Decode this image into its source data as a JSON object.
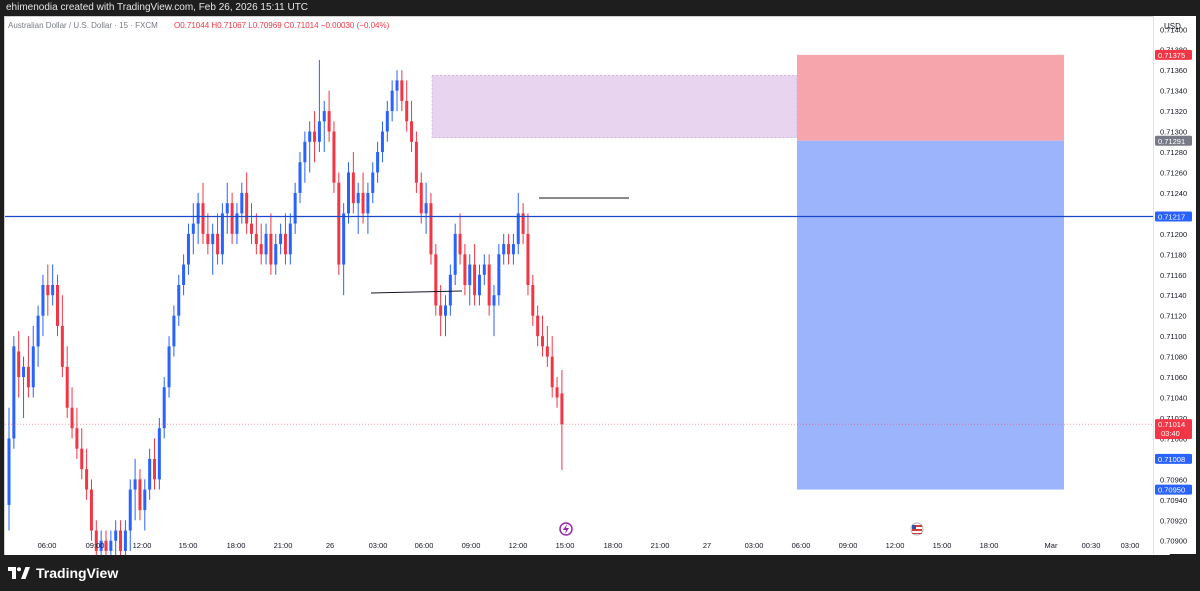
{
  "header": {
    "attribution": "ehimenodia created with TradingView.com, Feb 26, 2026 15:11 UTC"
  },
  "legend": {
    "symbol": "Australian Dollar / U.S. Dollar · 15 · FXCM",
    "ohlc": "O0.71044 H0.71067 L0.70969 C0.71014 −0.00030 (−0.04%)"
  },
  "price_axis": {
    "currency": "USD",
    "ticks": [
      "0.71400",
      "0.71380",
      "0.71360",
      "0.71340",
      "0.71320",
      "0.71300",
      "0.71280",
      "0.71260",
      "0.71240",
      "0.71220",
      "0.71200",
      "0.71180",
      "0.71160",
      "0.71140",
      "0.71120",
      "0.71100",
      "0.71080",
      "0.71060",
      "0.71040",
      "0.71020",
      "0.71000",
      "0.70980",
      "0.70960",
      "0.70940",
      "0.70920",
      "0.70900"
    ]
  },
  "time_axis": {
    "ticks": [
      "06:00",
      "09:00",
      "12:00",
      "15:00",
      "18:00",
      "21:00",
      "26",
      "03:00",
      "06:00",
      "09:00",
      "12:00",
      "15:00",
      "18:00",
      "21:00",
      "27",
      "03:00",
      "06:00",
      "09:00",
      "12:00",
      "15:00",
      "18:00",
      "Mar",
      "00:30",
      "03:00"
    ]
  },
  "price_labels": {
    "stop": "0.71375",
    "entry": "0.71291",
    "level": "0.71217",
    "current": "0.71014",
    "countdown": "03:40",
    "other": "0.71008",
    "target": "0.70950"
  },
  "colors": {
    "up": "#2962ff",
    "down": "#f23645",
    "stop_zone": "#f7a5ac",
    "target_zone": "#9cb4fc",
    "supply_zone": "#e9d4f0",
    "level_line": "#1848cc"
  },
  "chart_data": {
    "type": "candlestick",
    "symbol": "AUDUSD",
    "timeframe": "15",
    "ylim": [
      0.70888,
      0.71412
    ],
    "horizontal_level": 0.71217,
    "current_price": 0.71014,
    "supply_zone": {
      "top": 0.71355,
      "bottom": 0.71294
    },
    "position": {
      "stop": 0.71375,
      "entry": 0.71291,
      "target": 0.7095
    },
    "candles": [
      {
        "o": 0.70935,
        "h": 0.7103,
        "l": 0.7091,
        "c": 0.71
      },
      {
        "o": 0.71,
        "h": 0.711,
        "l": 0.7099,
        "c": 0.7109
      },
      {
        "o": 0.71085,
        "h": 0.71105,
        "l": 0.7104,
        "c": 0.7106
      },
      {
        "o": 0.7106,
        "h": 0.7108,
        "l": 0.7102,
        "c": 0.7107
      },
      {
        "o": 0.7107,
        "h": 0.711,
        "l": 0.7104,
        "c": 0.7105
      },
      {
        "o": 0.7105,
        "h": 0.7111,
        "l": 0.7104,
        "c": 0.7109
      },
      {
        "o": 0.7109,
        "h": 0.7113,
        "l": 0.7107,
        "c": 0.7112
      },
      {
        "o": 0.7112,
        "h": 0.7116,
        "l": 0.711,
        "c": 0.7115
      },
      {
        "o": 0.7115,
        "h": 0.7117,
        "l": 0.7112,
        "c": 0.7114
      },
      {
        "o": 0.7114,
        "h": 0.7117,
        "l": 0.7113,
        "c": 0.7115
      },
      {
        "o": 0.7115,
        "h": 0.7116,
        "l": 0.711,
        "c": 0.7111
      },
      {
        "o": 0.7111,
        "h": 0.7114,
        "l": 0.7106,
        "c": 0.7107
      },
      {
        "o": 0.7107,
        "h": 0.7109,
        "l": 0.7102,
        "c": 0.7103
      },
      {
        "o": 0.7103,
        "h": 0.7105,
        "l": 0.71,
        "c": 0.7101
      },
      {
        "o": 0.7101,
        "h": 0.7103,
        "l": 0.7098,
        "c": 0.7099
      },
      {
        "o": 0.7099,
        "h": 0.7101,
        "l": 0.7096,
        "c": 0.7097
      },
      {
        "o": 0.7097,
        "h": 0.7099,
        "l": 0.7094,
        "c": 0.7095
      },
      {
        "o": 0.7095,
        "h": 0.7096,
        "l": 0.709,
        "c": 0.7091
      },
      {
        "o": 0.7091,
        "h": 0.7092,
        "l": 0.7088,
        "c": 0.7089
      },
      {
        "o": 0.7089,
        "h": 0.7091,
        "l": 0.7088,
        "c": 0.709
      },
      {
        "o": 0.709,
        "h": 0.7091,
        "l": 0.7088,
        "c": 0.7089
      },
      {
        "o": 0.7089,
        "h": 0.7091,
        "l": 0.7088,
        "c": 0.709
      },
      {
        "o": 0.709,
        "h": 0.7092,
        "l": 0.7088,
        "c": 0.7091
      },
      {
        "o": 0.7091,
        "h": 0.7092,
        "l": 0.7088,
        "c": 0.7089
      },
      {
        "o": 0.7089,
        "h": 0.7092,
        "l": 0.7088,
        "c": 0.7091
      },
      {
        "o": 0.7091,
        "h": 0.7096,
        "l": 0.7089,
        "c": 0.7095
      },
      {
        "o": 0.7095,
        "h": 0.7098,
        "l": 0.7092,
        "c": 0.7096
      },
      {
        "o": 0.7096,
        "h": 0.7097,
        "l": 0.7092,
        "c": 0.7093
      },
      {
        "o": 0.7093,
        "h": 0.7096,
        "l": 0.7091,
        "c": 0.7095
      },
      {
        "o": 0.7095,
        "h": 0.7099,
        "l": 0.7094,
        "c": 0.7098
      },
      {
        "o": 0.7098,
        "h": 0.71,
        "l": 0.7095,
        "c": 0.7096
      },
      {
        "o": 0.7096,
        "h": 0.7102,
        "l": 0.7095,
        "c": 0.7101
      },
      {
        "o": 0.7101,
        "h": 0.7106,
        "l": 0.71,
        "c": 0.7105
      },
      {
        "o": 0.7105,
        "h": 0.711,
        "l": 0.7104,
        "c": 0.7109
      },
      {
        "o": 0.7109,
        "h": 0.7113,
        "l": 0.7108,
        "c": 0.7112
      },
      {
        "o": 0.7112,
        "h": 0.7116,
        "l": 0.7111,
        "c": 0.7115
      },
      {
        "o": 0.7115,
        "h": 0.7118,
        "l": 0.7114,
        "c": 0.7117
      },
      {
        "o": 0.7117,
        "h": 0.7121,
        "l": 0.7116,
        "c": 0.712
      },
      {
        "o": 0.712,
        "h": 0.7123,
        "l": 0.7118,
        "c": 0.7121
      },
      {
        "o": 0.7121,
        "h": 0.7124,
        "l": 0.7119,
        "c": 0.7123
      },
      {
        "o": 0.7123,
        "h": 0.7125,
        "l": 0.7119,
        "c": 0.712
      },
      {
        "o": 0.712,
        "h": 0.7122,
        "l": 0.7118,
        "c": 0.7119
      },
      {
        "o": 0.7119,
        "h": 0.7121,
        "l": 0.7116,
        "c": 0.712
      },
      {
        "o": 0.712,
        "h": 0.7122,
        "l": 0.7117,
        "c": 0.7118
      },
      {
        "o": 0.7118,
        "h": 0.7123,
        "l": 0.7117,
        "c": 0.7122
      },
      {
        "o": 0.7122,
        "h": 0.7125,
        "l": 0.712,
        "c": 0.7123
      },
      {
        "o": 0.7123,
        "h": 0.7124,
        "l": 0.7119,
        "c": 0.712
      },
      {
        "o": 0.712,
        "h": 0.7123,
        "l": 0.7119,
        "c": 0.7122
      },
      {
        "o": 0.7122,
        "h": 0.7125,
        "l": 0.7121,
        "c": 0.7124
      },
      {
        "o": 0.7124,
        "h": 0.7126,
        "l": 0.712,
        "c": 0.7121
      },
      {
        "o": 0.7121,
        "h": 0.7123,
        "l": 0.7119,
        "c": 0.712
      },
      {
        "o": 0.712,
        "h": 0.7122,
        "l": 0.7118,
        "c": 0.7119
      },
      {
        "o": 0.7119,
        "h": 0.7121,
        "l": 0.7117,
        "c": 0.7118
      },
      {
        "o": 0.7118,
        "h": 0.7121,
        "l": 0.7117,
        "c": 0.712
      },
      {
        "o": 0.712,
        "h": 0.7122,
        "l": 0.7116,
        "c": 0.7117
      },
      {
        "o": 0.7117,
        "h": 0.712,
        "l": 0.7116,
        "c": 0.7119
      },
      {
        "o": 0.7119,
        "h": 0.7121,
        "l": 0.7118,
        "c": 0.712
      },
      {
        "o": 0.712,
        "h": 0.7122,
        "l": 0.7117,
        "c": 0.7118
      },
      {
        "o": 0.7118,
        "h": 0.7122,
        "l": 0.7117,
        "c": 0.7121
      },
      {
        "o": 0.7121,
        "h": 0.7125,
        "l": 0.712,
        "c": 0.7124
      },
      {
        "o": 0.7124,
        "h": 0.7128,
        "l": 0.7123,
        "c": 0.7127
      },
      {
        "o": 0.7127,
        "h": 0.713,
        "l": 0.7125,
        "c": 0.7129
      },
      {
        "o": 0.7129,
        "h": 0.7131,
        "l": 0.7126,
        "c": 0.713
      },
      {
        "o": 0.713,
        "h": 0.7132,
        "l": 0.7127,
        "c": 0.7129
      },
      {
        "o": 0.7129,
        "h": 0.7137,
        "l": 0.7128,
        "c": 0.7131
      },
      {
        "o": 0.7131,
        "h": 0.7133,
        "l": 0.7128,
        "c": 0.7132
      },
      {
        "o": 0.7132,
        "h": 0.7134,
        "l": 0.7129,
        "c": 0.713
      },
      {
        "o": 0.713,
        "h": 0.7131,
        "l": 0.7124,
        "c": 0.7125
      },
      {
        "o": 0.7125,
        "h": 0.7126,
        "l": 0.7116,
        "c": 0.7117
      },
      {
        "o": 0.7117,
        "h": 0.7123,
        "l": 0.7114,
        "c": 0.7122
      },
      {
        "o": 0.7122,
        "h": 0.7127,
        "l": 0.7121,
        "c": 0.7126
      },
      {
        "o": 0.7126,
        "h": 0.7128,
        "l": 0.7122,
        "c": 0.7123
      },
      {
        "o": 0.7123,
        "h": 0.7125,
        "l": 0.712,
        "c": 0.7124
      },
      {
        "o": 0.7124,
        "h": 0.7126,
        "l": 0.7121,
        "c": 0.7122
      },
      {
        "o": 0.7122,
        "h": 0.7125,
        "l": 0.712,
        "c": 0.7124
      },
      {
        "o": 0.7124,
        "h": 0.7127,
        "l": 0.7123,
        "c": 0.7126
      },
      {
        "o": 0.7126,
        "h": 0.7129,
        "l": 0.7125,
        "c": 0.7128
      },
      {
        "o": 0.7128,
        "h": 0.7131,
        "l": 0.7127,
        "c": 0.713
      },
      {
        "o": 0.713,
        "h": 0.7133,
        "l": 0.7129,
        "c": 0.7132
      },
      {
        "o": 0.7132,
        "h": 0.7135,
        "l": 0.7131,
        "c": 0.7134
      },
      {
        "o": 0.7134,
        "h": 0.7136,
        "l": 0.7132,
        "c": 0.7135
      },
      {
        "o": 0.7135,
        "h": 0.7136,
        "l": 0.7132,
        "c": 0.7133
      },
      {
        "o": 0.7133,
        "h": 0.7135,
        "l": 0.713,
        "c": 0.7131
      },
      {
        "o": 0.7131,
        "h": 0.7133,
        "l": 0.7128,
        "c": 0.7129
      },
      {
        "o": 0.7129,
        "h": 0.713,
        "l": 0.7124,
        "c": 0.7125
      },
      {
        "o": 0.7125,
        "h": 0.7126,
        "l": 0.7121,
        "c": 0.7122
      },
      {
        "o": 0.7122,
        "h": 0.7125,
        "l": 0.712,
        "c": 0.7123
      },
      {
        "o": 0.7123,
        "h": 0.7124,
        "l": 0.7117,
        "c": 0.7118
      },
      {
        "o": 0.7118,
        "h": 0.7119,
        "l": 0.7112,
        "c": 0.7113
      },
      {
        "o": 0.7113,
        "h": 0.7115,
        "l": 0.711,
        "c": 0.7112
      },
      {
        "o": 0.7112,
        "h": 0.7114,
        "l": 0.711,
        "c": 0.7113
      },
      {
        "o": 0.7113,
        "h": 0.7117,
        "l": 0.7112,
        "c": 0.7116
      },
      {
        "o": 0.7116,
        "h": 0.7121,
        "l": 0.7115,
        "c": 0.712
      },
      {
        "o": 0.712,
        "h": 0.7122,
        "l": 0.7117,
        "c": 0.7118
      },
      {
        "o": 0.7118,
        "h": 0.7119,
        "l": 0.7114,
        "c": 0.7115
      },
      {
        "o": 0.7115,
        "h": 0.7118,
        "l": 0.7113,
        "c": 0.7117
      },
      {
        "o": 0.7117,
        "h": 0.7119,
        "l": 0.7113,
        "c": 0.7114
      },
      {
        "o": 0.7114,
        "h": 0.7117,
        "l": 0.7113,
        "c": 0.7116
      },
      {
        "o": 0.7116,
        "h": 0.7118,
        "l": 0.7115,
        "c": 0.7117
      },
      {
        "o": 0.7117,
        "h": 0.7118,
        "l": 0.7112,
        "c": 0.7113
      },
      {
        "o": 0.7113,
        "h": 0.7115,
        "l": 0.711,
        "c": 0.7114
      },
      {
        "o": 0.7114,
        "h": 0.7119,
        "l": 0.7113,
        "c": 0.7118
      },
      {
        "o": 0.7118,
        "h": 0.712,
        "l": 0.7117,
        "c": 0.7119
      },
      {
        "o": 0.7119,
        "h": 0.712,
        "l": 0.7117,
        "c": 0.7118
      },
      {
        "o": 0.7118,
        "h": 0.712,
        "l": 0.7117,
        "c": 0.7119
      },
      {
        "o": 0.7119,
        "h": 0.7124,
        "l": 0.7118,
        "c": 0.7122
      },
      {
        "o": 0.7122,
        "h": 0.7123,
        "l": 0.7119,
        "c": 0.712
      },
      {
        "o": 0.712,
        "h": 0.7122,
        "l": 0.7114,
        "c": 0.7115
      },
      {
        "o": 0.7115,
        "h": 0.7116,
        "l": 0.7111,
        "c": 0.7112
      },
      {
        "o": 0.7112,
        "h": 0.7113,
        "l": 0.7109,
        "c": 0.711
      },
      {
        "o": 0.711,
        "h": 0.7112,
        "l": 0.7108,
        "c": 0.7109
      },
      {
        "o": 0.7109,
        "h": 0.7111,
        "l": 0.7107,
        "c": 0.7108
      },
      {
        "o": 0.7108,
        "h": 0.711,
        "l": 0.7104,
        "c": 0.7105
      },
      {
        "o": 0.7105,
        "h": 0.7106,
        "l": 0.7103,
        "c": 0.7104
      },
      {
        "o": 0.71044,
        "h": 0.71067,
        "l": 0.70969,
        "c": 0.71014
      }
    ]
  }
}
